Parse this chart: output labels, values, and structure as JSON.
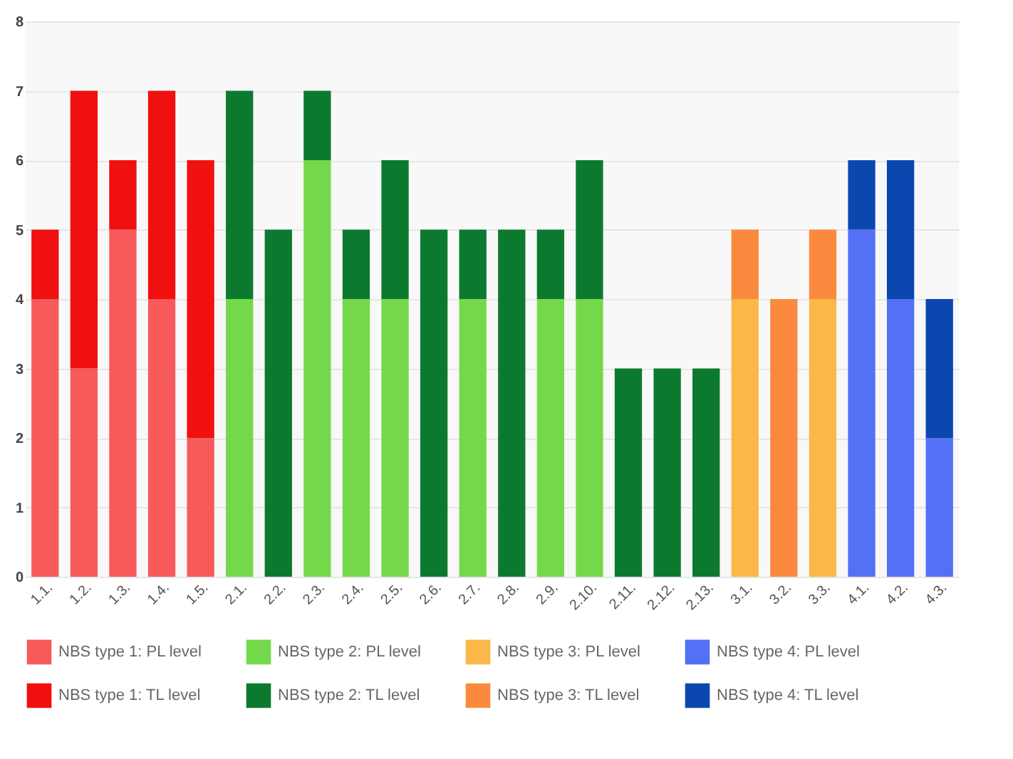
{
  "chart_data": {
    "type": "bar",
    "stacked": true,
    "categories": [
      "1.1.",
      "1.2.",
      "1.3.",
      "1.4.",
      "1.5.",
      "2.1.",
      "2.2.",
      "2.3.",
      "2.4.",
      "2.5.",
      "2.6.",
      "2.7.",
      "2.8.",
      "2.9.",
      "2.10.",
      "2.11.",
      "2.12.",
      "2.13.",
      "3.1.",
      "3.2.",
      "3.3.",
      "4.1.",
      "4.2.",
      "4.3."
    ],
    "ylim": [
      0,
      8
    ],
    "yticks": [
      0,
      1,
      2,
      3,
      4,
      5,
      6,
      7,
      8
    ],
    "grid": "y",
    "legend": "bottom",
    "series": [
      {
        "name": "NBS type 1: PL level",
        "color": "#f75a5a",
        "values": [
          4,
          3,
          5,
          4,
          2,
          null,
          null,
          null,
          null,
          null,
          null,
          null,
          null,
          null,
          null,
          null,
          null,
          null,
          null,
          null,
          null,
          null,
          null,
          null
        ]
      },
      {
        "name": "NBS type 1: TL level",
        "color": "#f01010",
        "values": [
          1,
          4,
          1,
          3,
          4,
          null,
          null,
          null,
          null,
          null,
          null,
          null,
          null,
          null,
          null,
          null,
          null,
          null,
          null,
          null,
          null,
          null,
          null,
          null
        ]
      },
      {
        "name": "NBS type 2: PL level",
        "color": "#74d94a",
        "values": [
          null,
          null,
          null,
          null,
          null,
          4,
          null,
          6,
          4,
          4,
          null,
          4,
          null,
          4,
          4,
          null,
          null,
          null,
          null,
          null,
          null,
          null,
          null,
          null
        ]
      },
      {
        "name": "NBS type 2: TL level",
        "color": "#0b7a2f",
        "values": [
          null,
          null,
          null,
          null,
          null,
          3,
          5,
          1,
          1,
          2,
          5,
          1,
          5,
          1,
          2,
          3,
          3,
          3,
          null,
          null,
          null,
          null,
          null,
          null
        ]
      },
      {
        "name": "NBS type 3: PL level",
        "color": "#fbb848",
        "values": [
          null,
          null,
          null,
          null,
          null,
          null,
          null,
          null,
          null,
          null,
          null,
          null,
          null,
          null,
          null,
          null,
          null,
          null,
          4,
          null,
          4,
          null,
          null,
          null
        ]
      },
      {
        "name": "NBS type 3: TL level",
        "color": "#fb8a3f",
        "values": [
          null,
          null,
          null,
          null,
          null,
          null,
          null,
          null,
          null,
          null,
          null,
          null,
          null,
          null,
          null,
          null,
          null,
          null,
          1,
          4,
          1,
          null,
          null,
          null
        ]
      },
      {
        "name": "NBS type 4: PL level",
        "color": "#5470f5",
        "values": [
          null,
          null,
          null,
          null,
          null,
          null,
          null,
          null,
          null,
          null,
          null,
          null,
          null,
          null,
          null,
          null,
          null,
          null,
          null,
          null,
          null,
          5,
          4,
          2
        ]
      },
      {
        "name": "NBS type 4: TL level",
        "color": "#0a48b0",
        "values": [
          null,
          null,
          null,
          null,
          null,
          null,
          null,
          null,
          null,
          null,
          null,
          null,
          null,
          null,
          null,
          null,
          null,
          null,
          null,
          null,
          null,
          1,
          2,
          2
        ]
      }
    ]
  }
}
